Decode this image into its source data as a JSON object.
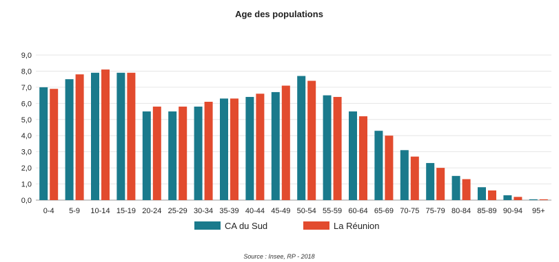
{
  "chart_data": {
    "type": "bar",
    "title": "Age des populations",
    "source": "Source : Insee, RP - 2018",
    "ylim": [
      0,
      9
    ],
    "yticks": [
      "0,0",
      "1,0",
      "2,0",
      "3,0",
      "4,0",
      "5,0",
      "6,0",
      "7,0",
      "8,0",
      "9,0"
    ],
    "grid": true,
    "legend_position": "bottom",
    "categories": [
      "0-4",
      "5-9",
      "10-14",
      "15-19",
      "20-24",
      "25-29",
      "30-34",
      "35-39",
      "40-44",
      "45-49",
      "50-54",
      "55-59",
      "60-64",
      "65-69",
      "70-75",
      "75-79",
      "80-84",
      "85-89",
      "90-94",
      "95+"
    ],
    "series": [
      {
        "name": "CA du Sud",
        "color": "#1a7a8c",
        "values": [
          7.0,
          7.5,
          7.9,
          7.9,
          5.5,
          5.5,
          5.8,
          6.3,
          6.4,
          6.7,
          7.7,
          6.5,
          5.5,
          4.3,
          3.1,
          2.3,
          1.5,
          0.8,
          0.3,
          0.05
        ]
      },
      {
        "name": "La Réunion",
        "color": "#e24b2e",
        "values": [
          6.9,
          7.8,
          8.1,
          7.9,
          5.8,
          5.8,
          6.1,
          6.3,
          6.6,
          7.1,
          7.4,
          6.4,
          5.2,
          4.0,
          2.7,
          2.0,
          1.3,
          0.6,
          0.2,
          0.05
        ]
      }
    ]
  }
}
